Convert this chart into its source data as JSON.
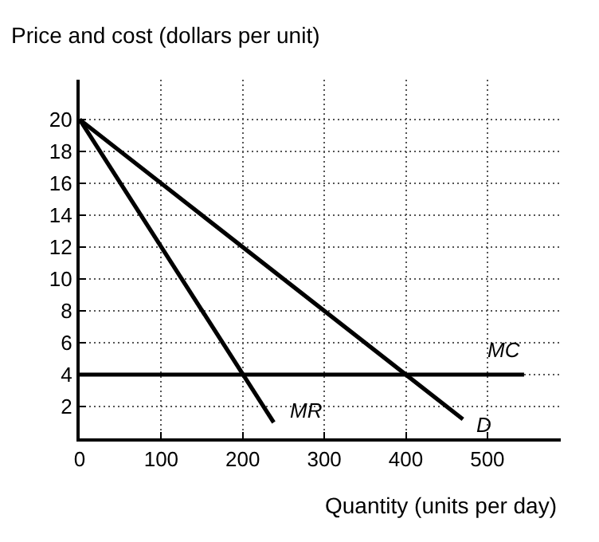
{
  "chart_data": {
    "type": "line",
    "ylabel": "Price and cost (dollars per unit)",
    "xlabel": "Quantity (units per day)",
    "series": [
      {
        "name": "D",
        "color": "#000000",
        "x": [
          0,
          470
        ],
        "values": [
          20,
          1.2
        ]
      },
      {
        "name": "MR",
        "color": "#000000",
        "x": [
          0,
          238
        ],
        "values": [
          20,
          1.0
        ]
      },
      {
        "name": "MC",
        "color": "#000000",
        "x": [
          0,
          545
        ],
        "values": [
          4,
          4
        ]
      }
    ],
    "xlim": [
      0,
      590
    ],
    "ylim": [
      0,
      22.5
    ],
    "xticks": [
      0,
      100,
      200,
      300,
      400,
      500
    ],
    "yticks": [
      2,
      4,
      6,
      8,
      10,
      12,
      14,
      16,
      18,
      20
    ],
    "grid": true,
    "marker": "none",
    "line_style": "solid"
  }
}
